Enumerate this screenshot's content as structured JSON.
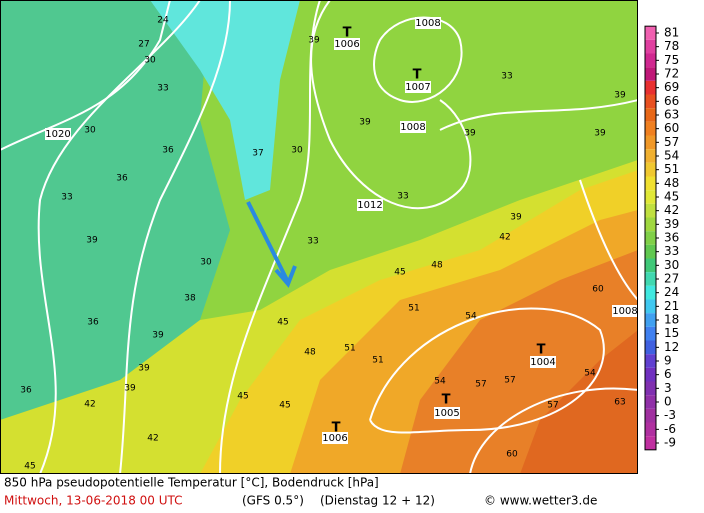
{
  "map": {
    "low_markers": [
      "T",
      "T",
      "T",
      "T",
      "T"
    ],
    "pressure_labels": [
      "1006",
      "1008",
      "1007",
      "1008",
      "1012",
      "1020",
      "1008",
      "1004",
      "1005",
      "1006"
    ],
    "temperature_labels": [
      "24",
      "27",
      "30",
      "30",
      "33",
      "36",
      "36",
      "33",
      "39",
      "30",
      "38",
      "36",
      "39",
      "39",
      "39",
      "42",
      "36",
      "42",
      "45",
      "45",
      "45",
      "48",
      "51",
      "51",
      "51",
      "48",
      "54",
      "57",
      "54",
      "57",
      "57",
      "60",
      "60",
      "63",
      "54",
      "45",
      "42",
      "39",
      "39",
      "39",
      "39",
      "33",
      "39",
      "33",
      "33",
      "30",
      "37",
      "39",
      "45"
    ]
  },
  "colorbar": {
    "ticks": [
      81,
      78,
      75,
      72,
      69,
      66,
      63,
      60,
      57,
      54,
      51,
      48,
      45,
      42,
      39,
      36,
      33,
      30,
      27,
      24,
      21,
      18,
      15,
      12,
      9,
      6,
      3,
      0,
      -3,
      -6,
      -9
    ],
    "colors": [
      "#f060b0",
      "#e040a0",
      "#d02890",
      "#c01878",
      "#e83030",
      "#e85020",
      "#e86818",
      "#f08020",
      "#f09828",
      "#f0b030",
      "#f0c830",
      "#f0e030",
      "#e0e838",
      "#c0e040",
      "#a0d840",
      "#80d048",
      "#60c850",
      "#40c878",
      "#40d8b0",
      "#40e8e0",
      "#40c8f0",
      "#40a0f0",
      "#4080f0",
      "#4060e0",
      "#6040d0",
      "#7030c0",
      "#8030b0",
      "#9030a8",
      "#a030a0",
      "#b030a0",
      "#c030a0"
    ]
  },
  "footer": {
    "title": "850 hPa pseudopotentielle Temperatur [°C], Bodendruck [hPa]",
    "date": "Mittwoch, 13-06-2018  00 UTC",
    "model": "(GFS 0.5°)",
    "run": "(Dienstag 12 + 12)",
    "credit": "© www.wetter3.de"
  }
}
